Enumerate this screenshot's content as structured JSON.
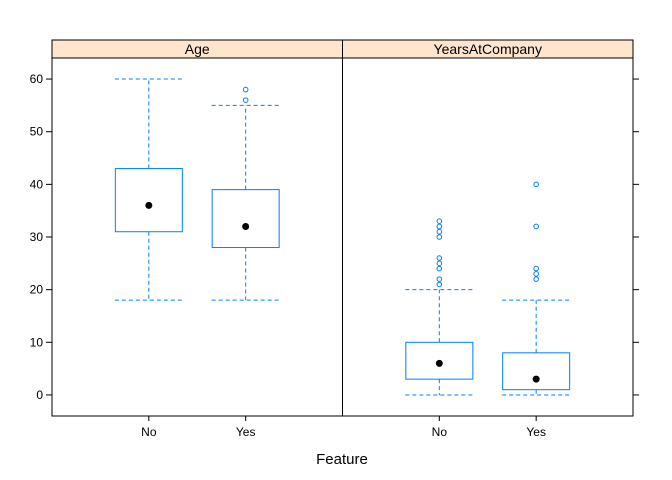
{
  "chart_data": {
    "type": "boxplot",
    "xlabel": "Feature",
    "ylabel": "",
    "ylim": [
      -4,
      64
    ],
    "yticks": [
      0,
      10,
      20,
      30,
      40,
      50,
      60
    ],
    "categories": [
      "No",
      "Yes"
    ],
    "colors": {
      "box": "#0080ff",
      "median": "#000000",
      "strip": "#ffe5cc",
      "frame": "#000000"
    },
    "panels": [
      {
        "title": "Age",
        "boxes": [
          {
            "category": "No",
            "min": 18,
            "q1": 31,
            "median": 36,
            "q3": 43,
            "max": 60,
            "outliers": []
          },
          {
            "category": "Yes",
            "min": 18,
            "q1": 28,
            "median": 32,
            "q3": 39,
            "max": 55,
            "outliers": [
              56,
              58
            ]
          }
        ]
      },
      {
        "title": "YearsAtCompany",
        "boxes": [
          {
            "category": "No",
            "min": 0,
            "q1": 3,
            "median": 6,
            "q3": 10,
            "max": 20,
            "outliers": [
              21,
              22,
              24,
              25,
              26,
              30,
              31,
              32,
              33
            ]
          },
          {
            "category": "Yes",
            "min": 0,
            "q1": 1,
            "median": 3,
            "q3": 8,
            "max": 18,
            "outliers": [
              22,
              23,
              24,
              32,
              40
            ]
          }
        ]
      }
    ]
  }
}
